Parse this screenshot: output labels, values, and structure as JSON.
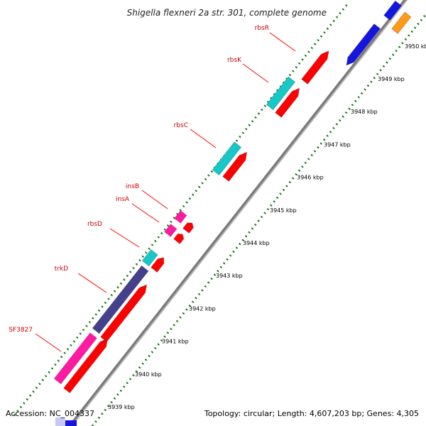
{
  "title": "Shigella flexneri 2a str. 301, complete genome",
  "footer": {
    "accession": "Accession: NC_004337",
    "topology": "Topology: circular; Length: 4,607,203 bp; Genes: 4,305"
  },
  "colors": {
    "backbone": "#888888",
    "tick": "#1f7a1f",
    "red": "#ff0000",
    "cyan": "#17c8c8",
    "magenta": "#ff1aa3",
    "navy": "#45408c",
    "blue": "#1515e0",
    "orange": "#ff9a1a",
    "label": "#cc0000"
  },
  "ticks": [
    {
      "label": "3939 kbp"
    },
    {
      "label": "3940 kbp"
    },
    {
      "label": "3941 kbp"
    },
    {
      "label": "3942 kbp"
    },
    {
      "label": "3943 kbp"
    },
    {
      "label": "3944 kbp"
    },
    {
      "label": "3945 kbp"
    },
    {
      "label": "3946 kbp"
    },
    {
      "label": "3947 kbp"
    },
    {
      "label": "3948 kbp"
    },
    {
      "label": "3949 kbp"
    },
    {
      "label": "3950 kbp"
    }
  ],
  "labels": [
    "SF3827",
    "trkD",
    "rbsD",
    "insA",
    "insB",
    "rbsC",
    "rbsK",
    "rbsR"
  ]
}
